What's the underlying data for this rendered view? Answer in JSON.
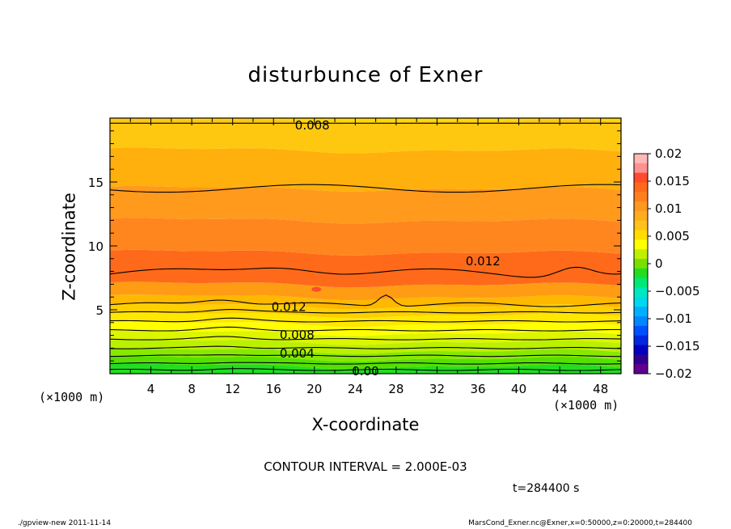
{
  "chart_data": {
    "type": "contour",
    "title": "disturbunce of Exner",
    "xlabel": "X-coordinate",
    "ylabel": "Z-coordinate",
    "x_unit_left": "(×1000 m)",
    "x_unit_right": "(×1000 m)",
    "xlim": [
      0,
      50
    ],
    "ylim": [
      0,
      20
    ],
    "x_ticks": [
      4,
      8,
      12,
      16,
      20,
      24,
      28,
      32,
      36,
      40,
      44,
      48
    ],
    "y_ticks": [
      5,
      10,
      15
    ],
    "colorbar": {
      "ticks": [
        "0.02",
        "0.015",
        "0.01",
        "0.005",
        "0",
        "−0.005",
        "−0.01",
        "−0.015",
        "−0.02"
      ],
      "range": [
        -0.02,
        0.02
      ],
      "colors": [
        "#fdb8b8",
        "#ff9090",
        "#ff4a2e",
        "#ff6a1a",
        "#ff7f20",
        "#ff9820",
        "#ffad1c",
        "#ffc21a",
        "#ffdd00",
        "#ffff00",
        "#bff000",
        "#78e000",
        "#22dd22",
        "#00e878",
        "#00e8c0",
        "#00d8f0",
        "#00b0ff",
        "#0088ff",
        "#0050ff",
        "#0028e0",
        "#0000c0",
        "#300090",
        "#600090"
      ]
    },
    "contour_interval": "2.000E-03",
    "contour_labels": [
      "0.008",
      "0.012",
      "0.012",
      "0.008",
      "0.004",
      "0.00"
    ],
    "bands": [
      {
        "z": 0.0,
        "value": 0.0005,
        "color": "#22dd22"
      },
      {
        "z": 0.6,
        "value": 0.0015,
        "color": "#55e000"
      },
      {
        "z": 1.2,
        "value": 0.0025,
        "color": "#88e800"
      },
      {
        "z": 1.8,
        "value": 0.0035,
        "color": "#bbf000"
      },
      {
        "z": 2.5,
        "value": 0.0045,
        "color": "#ddf500"
      },
      {
        "z": 3.2,
        "value": 0.0055,
        "color": "#ffff00"
      },
      {
        "z": 3.9,
        "value": 0.0065,
        "color": "#ffe800"
      },
      {
        "z": 4.6,
        "value": 0.0075,
        "color": "#ffd000"
      },
      {
        "z": 5.3,
        "value": 0.0085,
        "color": "#ffb800"
      },
      {
        "z": 6.0,
        "value": 0.0095,
        "color": "#ff9c14"
      },
      {
        "z": 7.0,
        "value": 0.0115,
        "color": "#ff6a1a"
      },
      {
        "z": 9.5,
        "value": 0.0105,
        "color": "#ff861e"
      },
      {
        "z": 12.0,
        "value": 0.0095,
        "color": "#ff9a1c"
      },
      {
        "z": 14.5,
        "value": 0.0085,
        "color": "#ffb00c"
      },
      {
        "z": 17.5,
        "value": 0.0075,
        "color": "#ffc810"
      },
      {
        "z": 19.8,
        "value": 0.007,
        "color": "#ffd800"
      }
    ]
  },
  "annotations": {
    "contour_note": "CONTOUR INTERVAL = 2.000E-03",
    "time_note": "t=284400  s",
    "footer_left": "./gpview-new   2011-11-14",
    "footer_right": "MarsCond_Exner.nc@Exner,x=0:50000,z=0:20000,t=284400"
  }
}
